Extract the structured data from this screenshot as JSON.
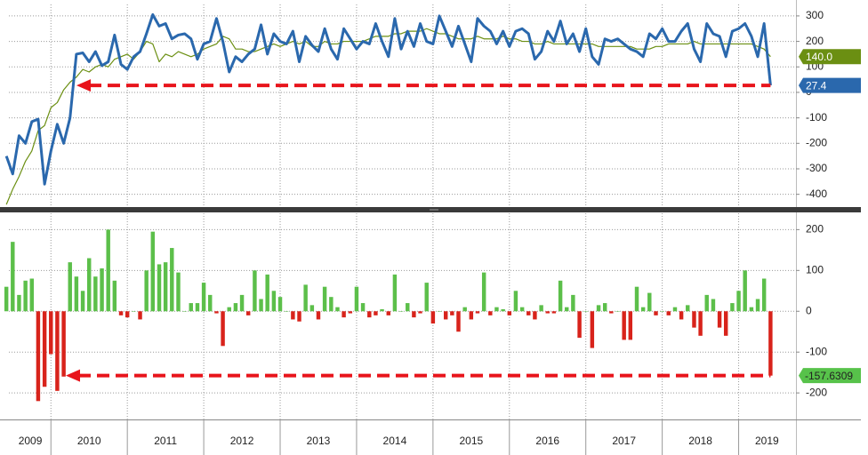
{
  "chart_data": [
    {
      "type": "line",
      "x": [
        2009.417,
        2009.5,
        2009.583,
        2009.667,
        2009.75,
        2009.833,
        2009.917,
        2010,
        2010.083,
        2010.167,
        2010.25,
        2010.333,
        2010.417,
        2010.5,
        2010.583,
        2010.667,
        2010.75,
        2010.833,
        2010.917,
        2011,
        2011.083,
        2011.167,
        2011.25,
        2011.333,
        2011.417,
        2011.5,
        2011.583,
        2011.667,
        2011.75,
        2011.833,
        2011.917,
        2012,
        2012.083,
        2012.167,
        2012.25,
        2012.333,
        2012.417,
        2012.5,
        2012.583,
        2012.667,
        2012.75,
        2012.833,
        2012.917,
        2013,
        2013.083,
        2013.167,
        2013.25,
        2013.333,
        2013.417,
        2013.5,
        2013.583,
        2013.667,
        2013.75,
        2013.833,
        2013.917,
        2014,
        2014.083,
        2014.167,
        2014.25,
        2014.333,
        2014.417,
        2014.5,
        2014.583,
        2014.667,
        2014.75,
        2014.833,
        2014.917,
        2015,
        2015.083,
        2015.167,
        2015.25,
        2015.333,
        2015.417,
        2015.5,
        2015.583,
        2015.667,
        2015.75,
        2015.833,
        2015.917,
        2016,
        2016.083,
        2016.167,
        2016.25,
        2016.333,
        2016.417,
        2016.5,
        2016.583,
        2016.667,
        2016.75,
        2016.833,
        2016.917,
        2017,
        2017.083,
        2017.167,
        2017.25,
        2017.333,
        2017.417,
        2017.5,
        2017.583,
        2017.667,
        2017.75,
        2017.833,
        2017.917,
        2018,
        2018.083,
        2018.167,
        2018.25,
        2018.333,
        2018.417,
        2018.5,
        2018.583,
        2018.667,
        2018.75,
        2018.833,
        2018.917,
        2019,
        2019.083,
        2019.167,
        2019.25,
        2019.333,
        2019.417
      ],
      "xlim": [
        2009.45,
        2019.75
      ],
      "ylim": [
        -450,
        345
      ],
      "yticks": [
        -400,
        -300,
        -200,
        -100,
        0,
        100,
        200,
        300
      ],
      "grid": true,
      "series": [
        {
          "color": "#2a68ad",
          "values": [
            -250,
            -320,
            -170,
            -200,
            -115,
            -105,
            -360,
            -230,
            -125,
            -200,
            -100,
            150,
            155,
            120,
            160,
            105,
            120,
            225,
            110,
            90,
            140,
            160,
            230,
            305,
            260,
            270,
            210,
            225,
            230,
            210,
            130,
            190,
            200,
            290,
            200,
            80,
            140,
            120,
            150,
            170,
            265,
            150,
            230,
            200,
            190,
            240,
            120,
            220,
            185,
            160,
            250,
            170,
            130,
            250,
            210,
            170,
            200,
            190,
            270,
            200,
            140,
            290,
            170,
            240,
            180,
            270,
            200,
            190,
            300,
            240,
            180,
            260,
            190,
            120,
            290,
            260,
            240,
            190,
            240,
            180,
            240,
            250,
            230,
            130,
            160,
            240,
            200,
            280,
            190,
            230,
            160,
            250,
            140,
            110,
            210,
            200,
            210,
            190,
            170,
            160,
            140,
            230,
            210,
            250,
            200,
            200,
            240,
            270,
            170,
            120,
            270,
            230,
            220,
            140,
            240,
            250,
            270,
            220,
            140,
            270,
            27.4
          ]
        },
        {
          "color": "#6b8f12",
          "end_label": "140.0",
          "values": [
            -440,
            -380,
            -330,
            -270,
            -230,
            -150,
            -130,
            -60,
            -40,
            10,
            40,
            60,
            90,
            80,
            100,
            110,
            100,
            130,
            140,
            150,
            130,
            160,
            200,
            190,
            120,
            150,
            140,
            160,
            150,
            140,
            150,
            170,
            180,
            190,
            220,
            210,
            170,
            170,
            160,
            160,
            170,
            180,
            190,
            180,
            190,
            200,
            190,
            200,
            180,
            180,
            200,
            190,
            190,
            200,
            200,
            200,
            200,
            210,
            220,
            220,
            220,
            230,
            230,
            240,
            240,
            240,
            250,
            240,
            230,
            230,
            220,
            210,
            210,
            210,
            220,
            210,
            210,
            210,
            220,
            210,
            210,
            200,
            200,
            190,
            190,
            200,
            190,
            190,
            190,
            190,
            190,
            190,
            190,
            180,
            180,
            180,
            180,
            180,
            180,
            170,
            170,
            170,
            180,
            180,
            190,
            190,
            190,
            190,
            200,
            190,
            190,
            190,
            190,
            190,
            190,
            190,
            190,
            190,
            180,
            170,
            140
          ]
        }
      ]
    },
    {
      "type": "bar",
      "x": [
        2009.417,
        2009.5,
        2009.583,
        2009.667,
        2009.75,
        2009.833,
        2009.917,
        2010,
        2010.083,
        2010.167,
        2010.25,
        2010.333,
        2010.417,
        2010.5,
        2010.583,
        2010.667,
        2010.75,
        2010.833,
        2010.917,
        2011,
        2011.083,
        2011.167,
        2011.25,
        2011.333,
        2011.417,
        2011.5,
        2011.583,
        2011.667,
        2011.75,
        2011.833,
        2011.917,
        2012,
        2012.083,
        2012.167,
        2012.25,
        2012.333,
        2012.417,
        2012.5,
        2012.583,
        2012.667,
        2012.75,
        2012.833,
        2012.917,
        2013,
        2013.083,
        2013.167,
        2013.25,
        2013.333,
        2013.417,
        2013.5,
        2013.583,
        2013.667,
        2013.75,
        2013.833,
        2013.917,
        2014,
        2014.083,
        2014.167,
        2014.25,
        2014.333,
        2014.417,
        2014.5,
        2014.583,
        2014.667,
        2014.75,
        2014.833,
        2014.917,
        2015,
        2015.083,
        2015.167,
        2015.25,
        2015.333,
        2015.417,
        2015.5,
        2015.583,
        2015.667,
        2015.75,
        2015.833,
        2015.917,
        2016,
        2016.083,
        2016.167,
        2016.25,
        2016.333,
        2016.417,
        2016.5,
        2016.583,
        2016.667,
        2016.75,
        2016.833,
        2016.917,
        2017,
        2017.083,
        2017.167,
        2017.25,
        2017.333,
        2017.417,
        2017.5,
        2017.583,
        2017.667,
        2017.75,
        2017.833,
        2017.917,
        2018,
        2018.083,
        2018.167,
        2018.25,
        2018.333,
        2018.417,
        2018.5,
        2018.583,
        2018.667,
        2018.75,
        2018.833,
        2018.917,
        2019,
        2019.083,
        2019.167,
        2019.25,
        2019.333,
        2019.417
      ],
      "xlim": [
        2009.45,
        2019.75
      ],
      "xticks": [
        {
          "value": 2009.73,
          "label": "2009"
        },
        {
          "value": 2010.5,
          "label": "2010"
        },
        {
          "value": 2011.5,
          "label": "2011"
        },
        {
          "value": 2012.5,
          "label": "2012"
        },
        {
          "value": 2013.5,
          "label": "2013"
        },
        {
          "value": 2014.5,
          "label": "2014"
        },
        {
          "value": 2015.5,
          "label": "2015"
        },
        {
          "value": 2016.5,
          "label": "2016"
        },
        {
          "value": 2017.5,
          "label": "2017"
        },
        {
          "value": 2018.5,
          "label": "2018"
        },
        {
          "value": 2019.37,
          "label": "2019"
        }
      ],
      "ylim": [
        -265,
        240
      ],
      "yticks": [
        -200,
        -100,
        0,
        100,
        200
      ],
      "grid": true,
      "positive_color": "#5cbf4a",
      "negative_color": "#d8231b",
      "values": [
        60,
        170,
        40,
        75,
        80,
        -220,
        -185,
        -105,
        -195,
        -160,
        120,
        85,
        50,
        130,
        85,
        105,
        200,
        75,
        -10,
        -15,
        0,
        -20,
        100,
        195,
        115,
        120,
        155,
        95,
        0,
        20,
        20,
        70,
        40,
        -5,
        -85,
        10,
        20,
        40,
        -10,
        100,
        30,
        90,
        50,
        35,
        0,
        -20,
        -25,
        65,
        15,
        -20,
        60,
        35,
        10,
        -15,
        -5,
        60,
        20,
        -15,
        -10,
        5,
        -10,
        90,
        0,
        20,
        -15,
        -5,
        70,
        -30,
        0,
        -20,
        -10,
        -50,
        10,
        -20,
        -5,
        95,
        -10,
        10,
        5,
        -10,
        50,
        10,
        -10,
        -20,
        15,
        -5,
        -5,
        75,
        10,
        40,
        -65,
        0,
        -90,
        15,
        20,
        -5,
        0,
        -70,
        -70,
        60,
        10,
        45,
        -10,
        0,
        -10,
        10,
        -20,
        15,
        -40,
        -60,
        40,
        30,
        -40,
        -60,
        20,
        50,
        100,
        10,
        30,
        80,
        -157.6309
      ]
    }
  ]
}
